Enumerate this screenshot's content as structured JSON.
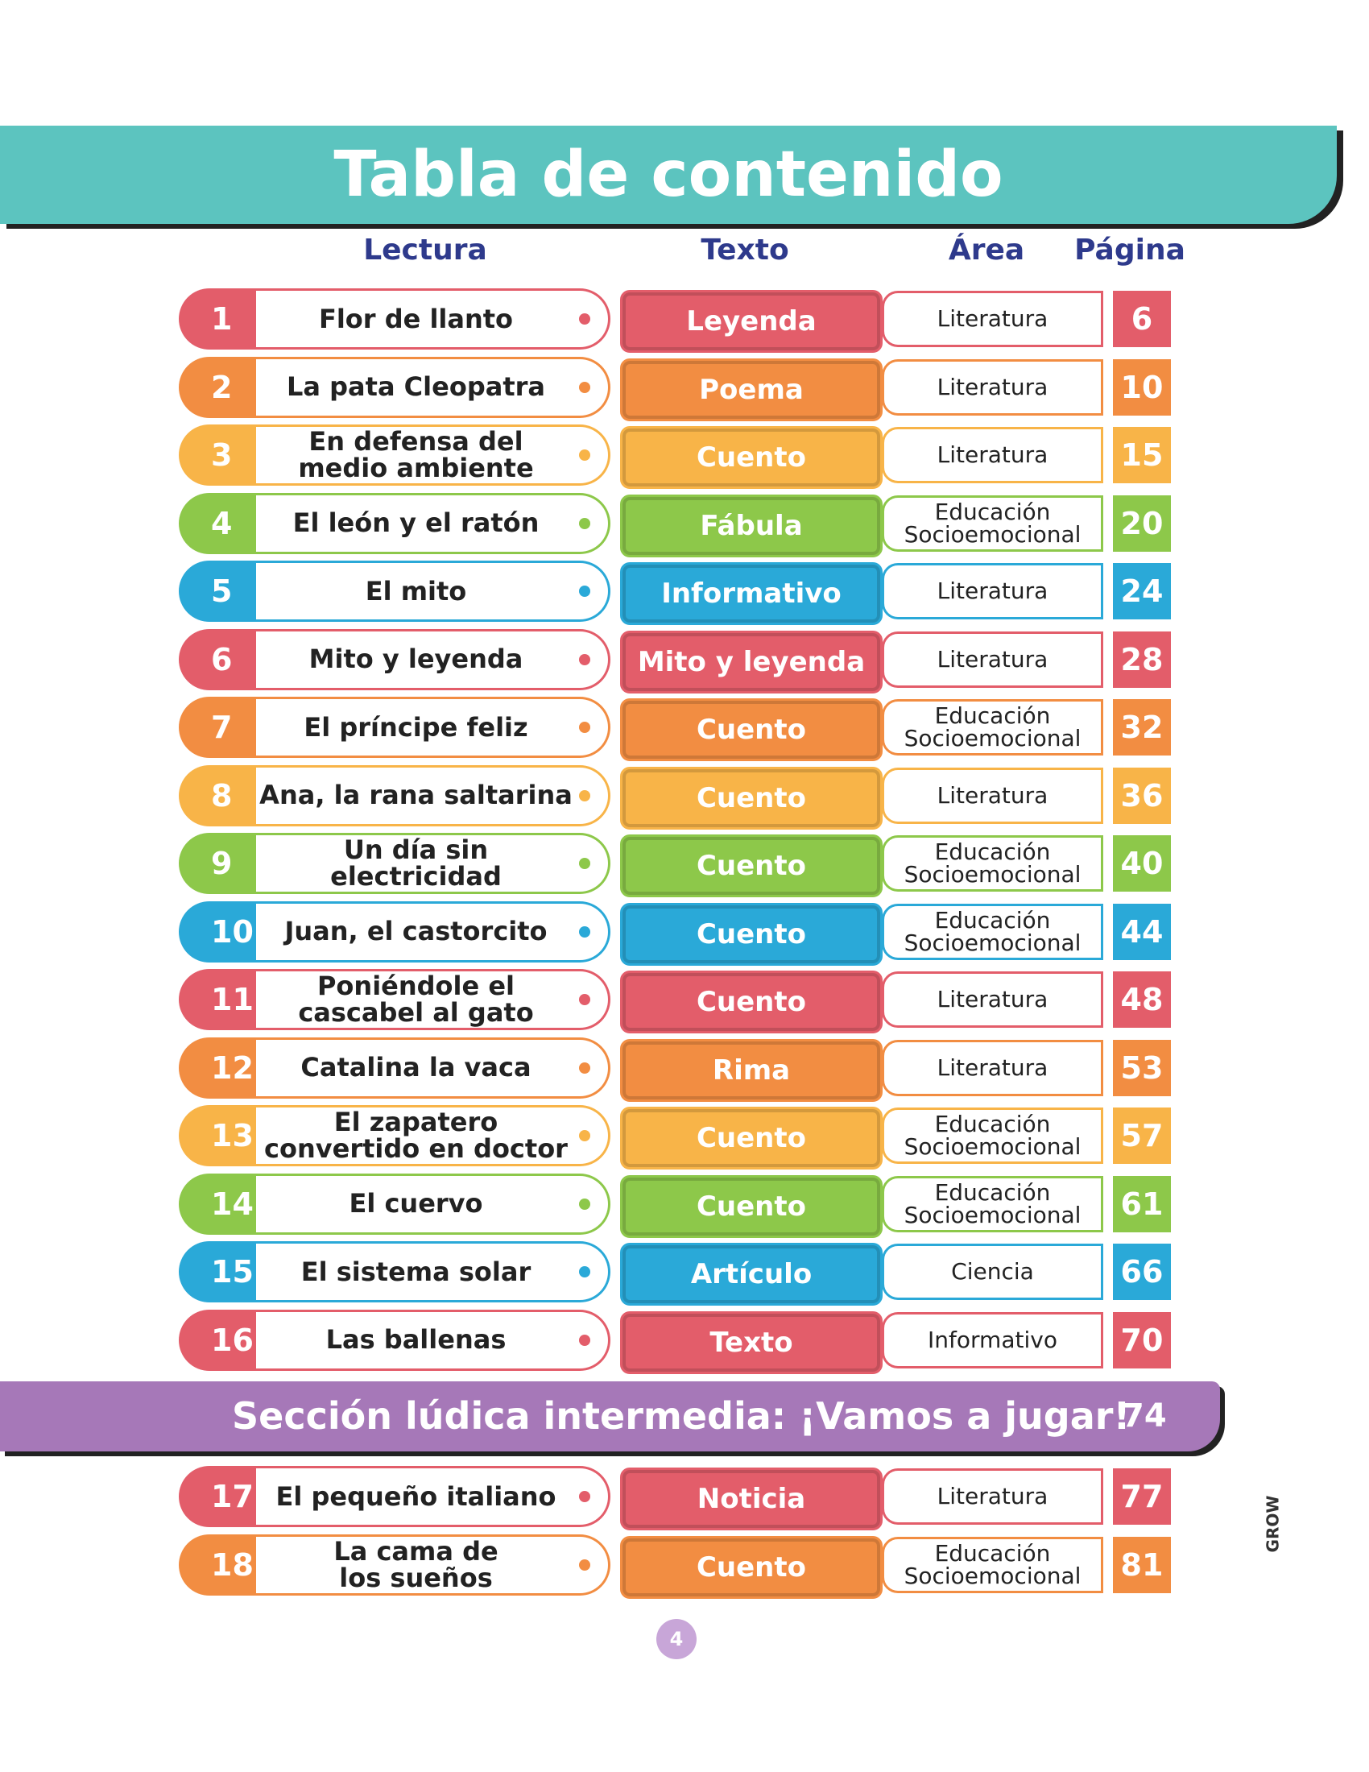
{
  "header": {
    "title": "Tabla de contenido"
  },
  "columns": [
    "Lectura",
    "Texto",
    "Área",
    "Página"
  ],
  "rows": [
    {
      "number": 1,
      "lectura": "Flor de llanto",
      "texto": "Leyenda",
      "area": "Literatura",
      "pagina": 6,
      "color": "#e35d6a"
    },
    {
      "number": 2,
      "lectura": "La pata Cleopatra",
      "texto": "Poema",
      "area": "Literatura",
      "pagina": 10,
      "color": "#f28d42"
    },
    {
      "number": 3,
      "lectura": "En defensa del\nmedio ambiente",
      "texto": "Cuento",
      "area": "Literatura",
      "pagina": 15,
      "color": "#f8b448"
    },
    {
      "number": 4,
      "lectura": "El león y el ratón",
      "texto": "Fábula",
      "area": "Educación\nSocioemocional",
      "pagina": 20,
      "color": "#8dc84a"
    },
    {
      "number": 5,
      "lectura": "El mito",
      "texto": "Informativo",
      "area": "Literatura",
      "pagina": 24,
      "color": "#2aa9d8"
    },
    {
      "number": 6,
      "lectura": "Mito y leyenda",
      "texto": "Mito y leyenda",
      "area": "Literatura",
      "pagina": 28,
      "color": "#e35d6a"
    },
    {
      "number": 7,
      "lectura": "El príncipe feliz",
      "texto": "Cuento",
      "area": "Educación\nSocioemocional",
      "pagina": 32,
      "color": "#f28d42"
    },
    {
      "number": 8,
      "lectura": "Ana, la rana saltarina",
      "texto": "Cuento",
      "area": "Literatura",
      "pagina": 36,
      "color": "#f8b448"
    },
    {
      "number": 9,
      "lectura": "Un día sin electricidad",
      "texto": "Cuento",
      "area": "Educación\nSocioemocional",
      "pagina": 40,
      "color": "#8dc84a"
    },
    {
      "number": 10,
      "lectura": "Juan, el castorcito",
      "texto": "Cuento",
      "area": "Educación\nSocioemocional",
      "pagina": 44,
      "color": "#2aa9d8"
    },
    {
      "number": 11,
      "lectura": "Poniéndole el\ncascabel al gato",
      "texto": "Cuento",
      "area": "Literatura",
      "pagina": 48,
      "color": "#e35d6a"
    },
    {
      "number": 12,
      "lectura": "Catalina la vaca",
      "texto": "Rima",
      "area": "Literatura",
      "pagina": 53,
      "color": "#f28d42"
    },
    {
      "number": 13,
      "lectura": "El zapatero\nconvertido en doctor",
      "texto": "Cuento",
      "area": "Educación\nSocioemocional",
      "pagina": 57,
      "color": "#f8b448"
    },
    {
      "number": 14,
      "lectura": "El cuervo",
      "texto": "Cuento",
      "area": "Educación\nSocioemocional",
      "pagina": 61,
      "color": "#8dc84a"
    },
    {
      "number": 15,
      "lectura": "El sistema solar",
      "texto": "Artículo",
      "area": "Ciencia",
      "pagina": 66,
      "color": "#2aa9d8"
    },
    {
      "number": 16,
      "lectura": "Las ballenas",
      "texto": "Texto",
      "area": "Informativo",
      "pagina": 70,
      "color": "#e35d6a"
    },
    {
      "number": 17,
      "lectura": "El pequeño italiano",
      "texto": "Noticia",
      "area": "Literatura",
      "pagina": 77,
      "color": "#e35d6a"
    },
    {
      "number": 18,
      "lectura": "La cama de\nlos sueños",
      "texto": "Cuento",
      "area": "Educación\nSocioemocional",
      "pagina": 81,
      "color": "#f28d42"
    }
  ],
  "section": {
    "title": "Sección lúdica intermedia: ¡Vamos a jugar!",
    "page": 74
  },
  "footer": {
    "page": 4,
    "brand": "GROW"
  }
}
